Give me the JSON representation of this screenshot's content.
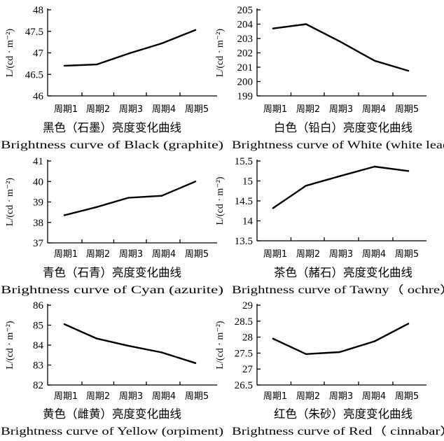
{
  "chart_data": [
    {
      "type": "line",
      "categories": [
        "周期1",
        "周期2",
        "周期3",
        "周期4",
        "周期5"
      ],
      "values": [
        46.7,
        46.73,
        46.98,
        47.22,
        47.53
      ],
      "ylabel": "L/(cd · m⁻²)",
      "ylim": [
        46,
        48
      ],
      "yticks": [
        "46",
        "46.5",
        "47",
        "47.5",
        "48"
      ],
      "caption_cn": "黑色（石墨）亮度变化曲线",
      "caption_en": "Brightness curve of Black (graphite)"
    },
    {
      "type": "line",
      "categories": [
        "周期1",
        "周期2",
        "周期3",
        "周期4",
        "周期5"
      ],
      "values": [
        203.7,
        204.0,
        202.8,
        201.45,
        200.75
      ],
      "ylabel": "L/(cd · m⁻²)",
      "ylim": [
        199,
        205
      ],
      "yticks": [
        "199",
        "200",
        "201",
        "202",
        "203",
        "204",
        "205"
      ],
      "caption_cn": "白色（铅白）亮度变化曲线",
      "caption_en": "Brightness curve of White (white lead)"
    },
    {
      "type": "line",
      "categories": [
        "周期1",
        "周期2",
        "周期3",
        "周期4",
        "周期5"
      ],
      "values": [
        38.35,
        38.75,
        39.2,
        39.3,
        40.0
      ],
      "ylabel": "L/(cd · m⁻²)",
      "ylim": [
        37,
        41
      ],
      "yticks": [
        "37",
        "38",
        "39",
        "40",
        "41"
      ],
      "caption_cn": "青色（石青）亮度变化曲线",
      "caption_en": "Brightness curve of Cyan (azurite)"
    },
    {
      "type": "line",
      "categories": [
        "周期1",
        "周期2",
        "周期3",
        "周期4",
        "周期5"
      ],
      "values": [
        14.32,
        14.88,
        15.12,
        15.36,
        15.25
      ],
      "ylabel": "L/(cd · m⁻²)",
      "ylim": [
        13.5,
        15.5
      ],
      "yticks": [
        "13.5",
        "14",
        "14.5",
        "15",
        "15.5"
      ],
      "caption_cn": "茶色（赭石）亮度变化曲线",
      "caption_en": "Brightness curve of Tawny（ ochre）"
    },
    {
      "type": "line",
      "categories": [
        "周期1",
        "周期2",
        "周期3",
        "周期4",
        "周期5"
      ],
      "values": [
        85.05,
        84.33,
        83.97,
        83.63,
        83.1
      ],
      "ylabel": "L/(cd · m⁻²)",
      "ylim": [
        82,
        86
      ],
      "yticks": [
        "82",
        "83",
        "84",
        "85",
        "86"
      ],
      "caption_cn": "黄色（雌黄）亮度变化曲线",
      "caption_en": "Brightness curve of Yellow (orpiment)"
    },
    {
      "type": "line",
      "categories": [
        "周期1",
        "周期2",
        "周期3",
        "周期4",
        "周期5"
      ],
      "values": [
        27.95,
        27.47,
        27.53,
        27.87,
        28.42
      ],
      "ylabel": "L/(cd · m⁻²)",
      "ylim": [
        26.5,
        29
      ],
      "yticks": [
        "26.5",
        "27",
        "27.5",
        "28",
        "28.5",
        "29"
      ],
      "caption_cn": "红色（朱砂）亮度变化曲线",
      "caption_en": "Brightness curve of Red（ cinnabar）"
    }
  ]
}
